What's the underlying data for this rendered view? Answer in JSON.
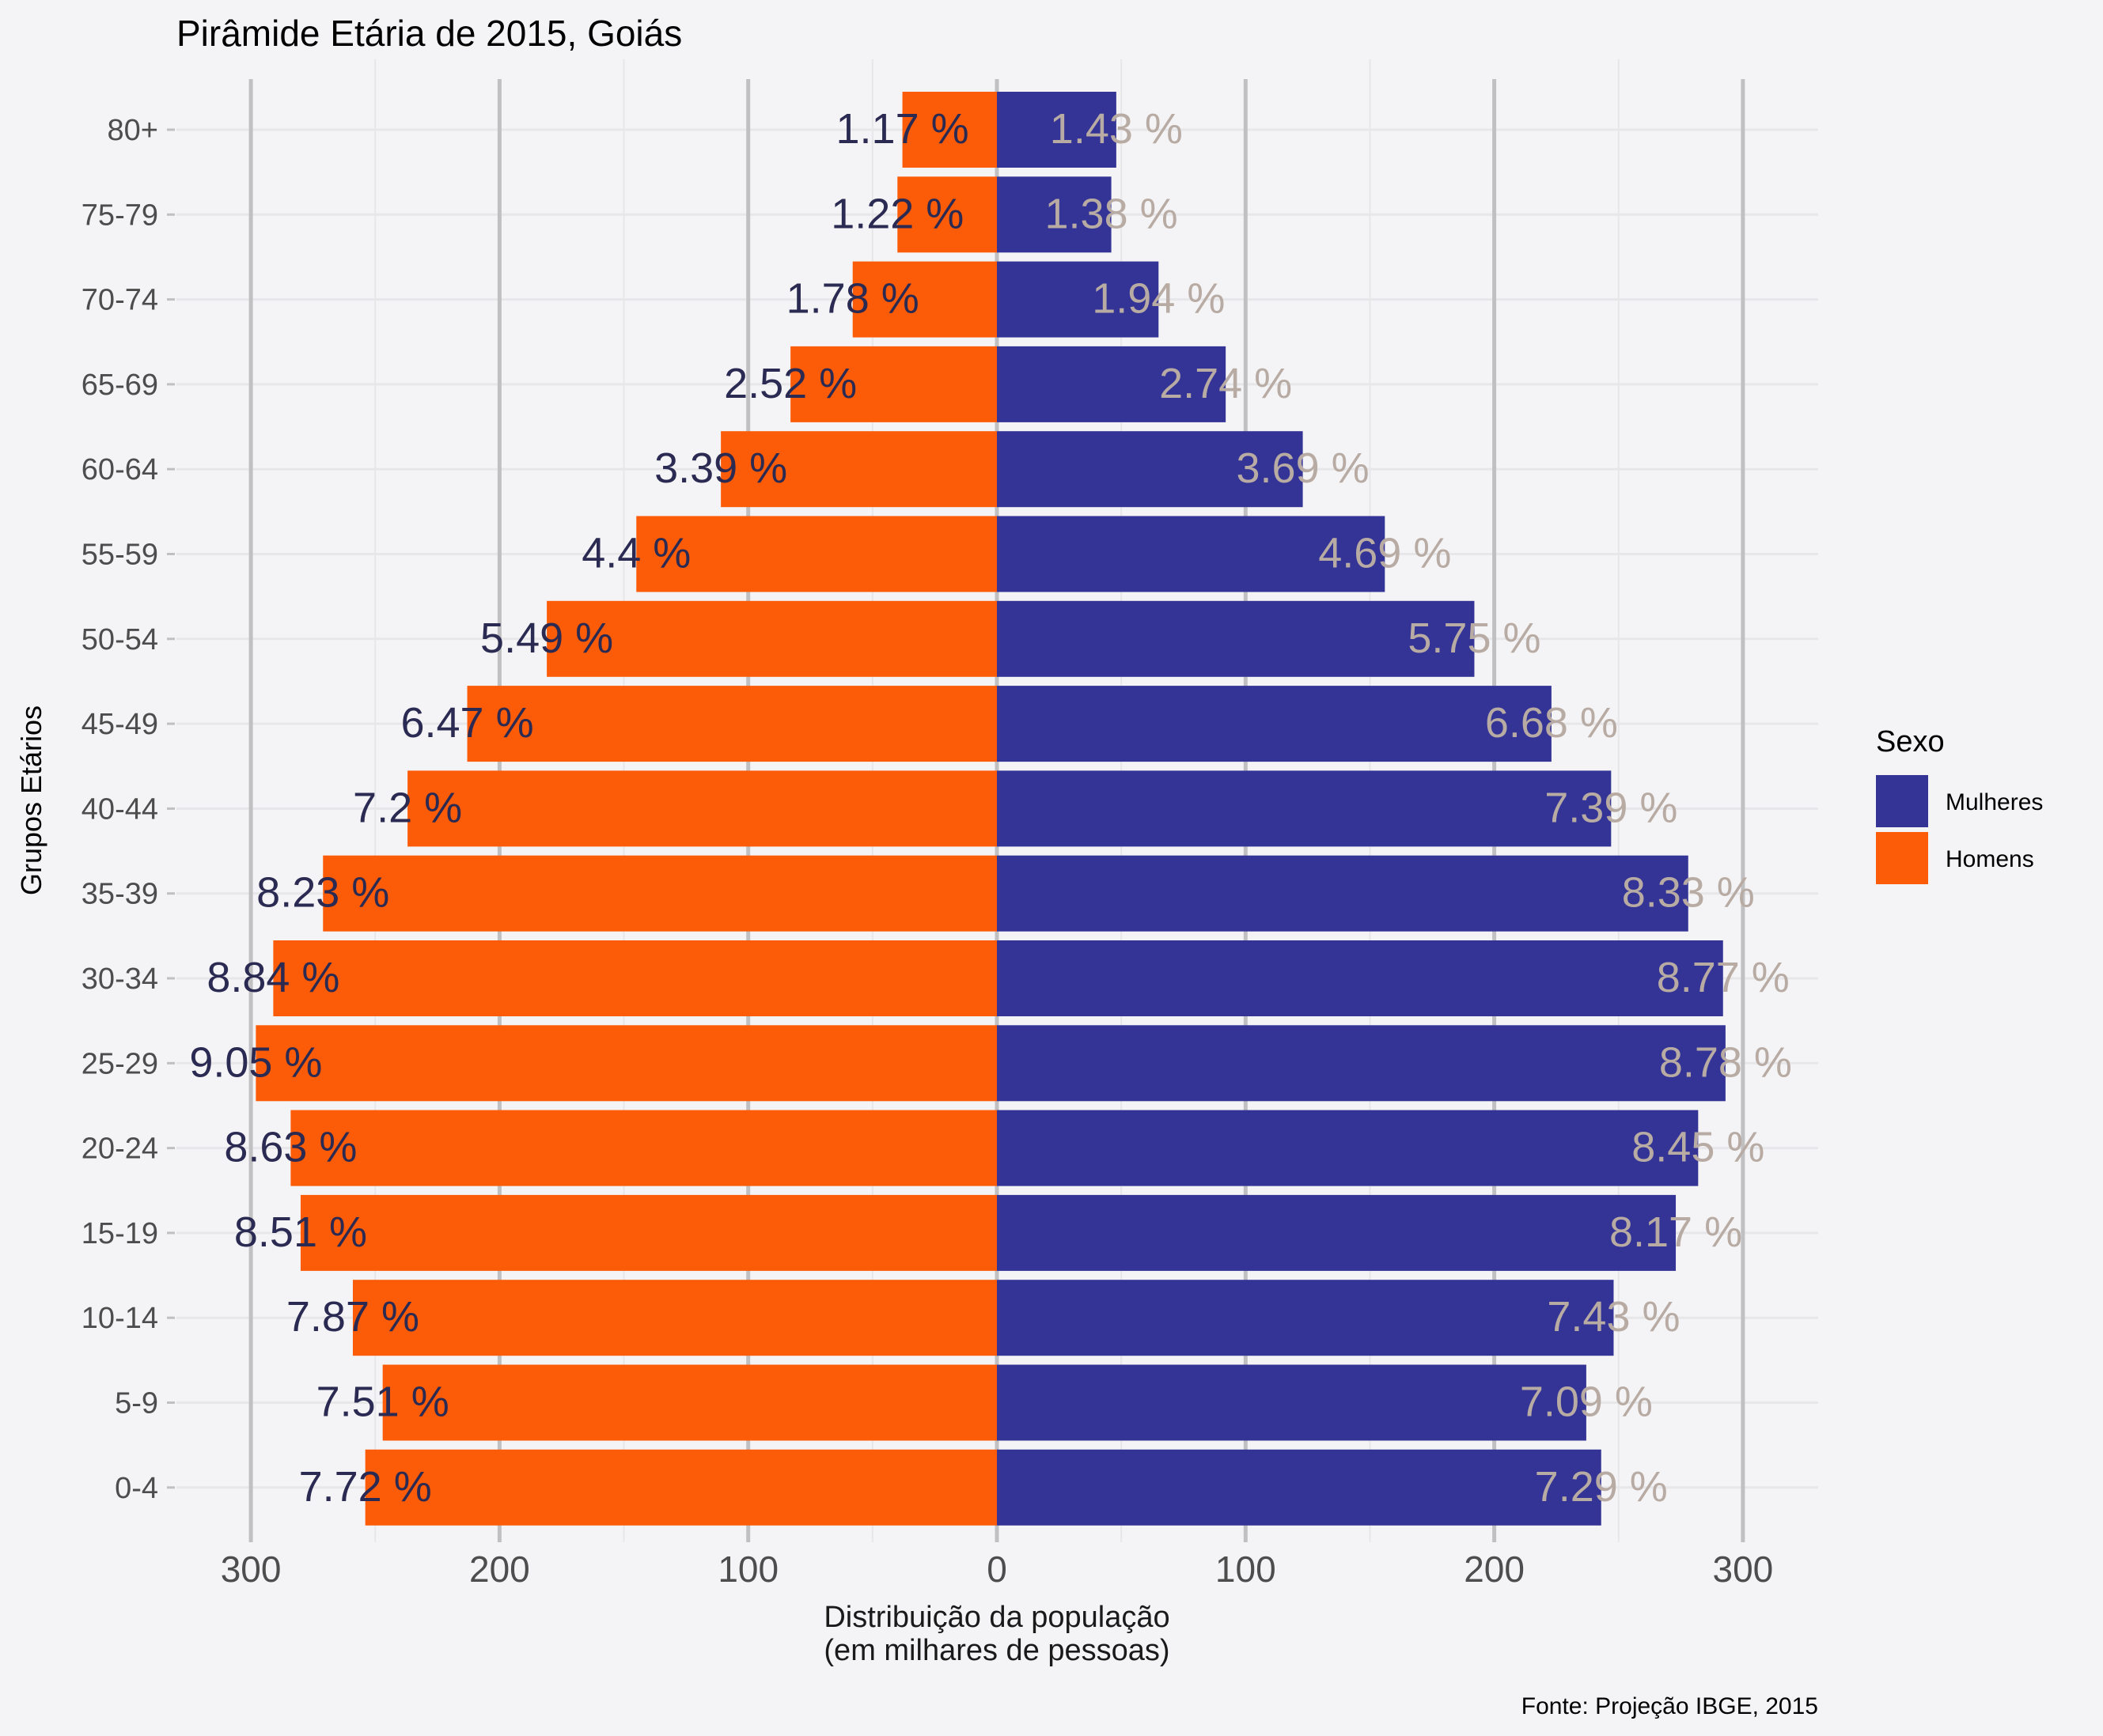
{
  "chart_data": {
    "type": "bar",
    "orientation": "horizontal",
    "title": "Pirâmide Etária de 2015, Goiás",
    "xlabel": "Distribuição da população\n(em milhares de pessoas)",
    "ylabel": "Grupos Etários",
    "caption": "Fonte: Projeção IBGE, 2015",
    "xlim": [
      -330,
      330
    ],
    "x_ticks": [
      -300,
      -200,
      -100,
      0,
      100,
      200,
      300
    ],
    "x_tick_labels": [
      "300",
      "200",
      "100",
      "0",
      "100",
      "200",
      "300"
    ],
    "categories": [
      "80+",
      "75-79",
      "70-74",
      "65-69",
      "60-64",
      "55-59",
      "50-54",
      "45-49",
      "40-44",
      "35-39",
      "30-34",
      "25-29",
      "20-24",
      "15-19",
      "10-14",
      "5-9",
      "0-4"
    ],
    "series": [
      {
        "name": "Mulheres",
        "color": "#343496",
        "label_color": "#b8aba3",
        "values": [
          48,
          46,
          65,
          92,
          123,
          156,
          192,
          223,
          247,
          278,
          292,
          293,
          282,
          273,
          248,
          237,
          243
        ],
        "labels": [
          "1.43 %",
          "1.38 %",
          "1.94 %",
          "2.74 %",
          "3.69 %",
          "4.69 %",
          "5.75 %",
          "6.68 %",
          "7.39 %",
          "8.33 %",
          "8.77 %",
          "8.78 %",
          "8.45 %",
          "8.17 %",
          "7.43 %",
          "7.09 %",
          "7.29 %"
        ]
      },
      {
        "name": "Homens",
        "color": "#fc5c08",
        "label_color": "#2a2a52",
        "values": [
          -38,
          -40,
          -58,
          -83,
          -111,
          -145,
          -181,
          -213,
          -237,
          -271,
          -291,
          -298,
          -284,
          -280,
          -259,
          -247,
          -254
        ],
        "labels": [
          "1.17 %",
          "1.22 %",
          "1.78 %",
          "2.52 %",
          "3.39 %",
          "4.4 %",
          "5.49 %",
          "6.47 %",
          "7.2 %",
          "8.23 %",
          "8.84 %",
          "9.05 %",
          "8.63 %",
          "8.51 %",
          "7.87 %",
          "7.51 %",
          "7.72 %"
        ]
      }
    ],
    "legend": {
      "title": "Sexo",
      "position": "right",
      "items": [
        {
          "label": "Mulheres",
          "color": "#343496"
        },
        {
          "label": "Homens",
          "color": "#fc5c08"
        }
      ]
    },
    "grid": true,
    "background": "#f4f4f6"
  }
}
